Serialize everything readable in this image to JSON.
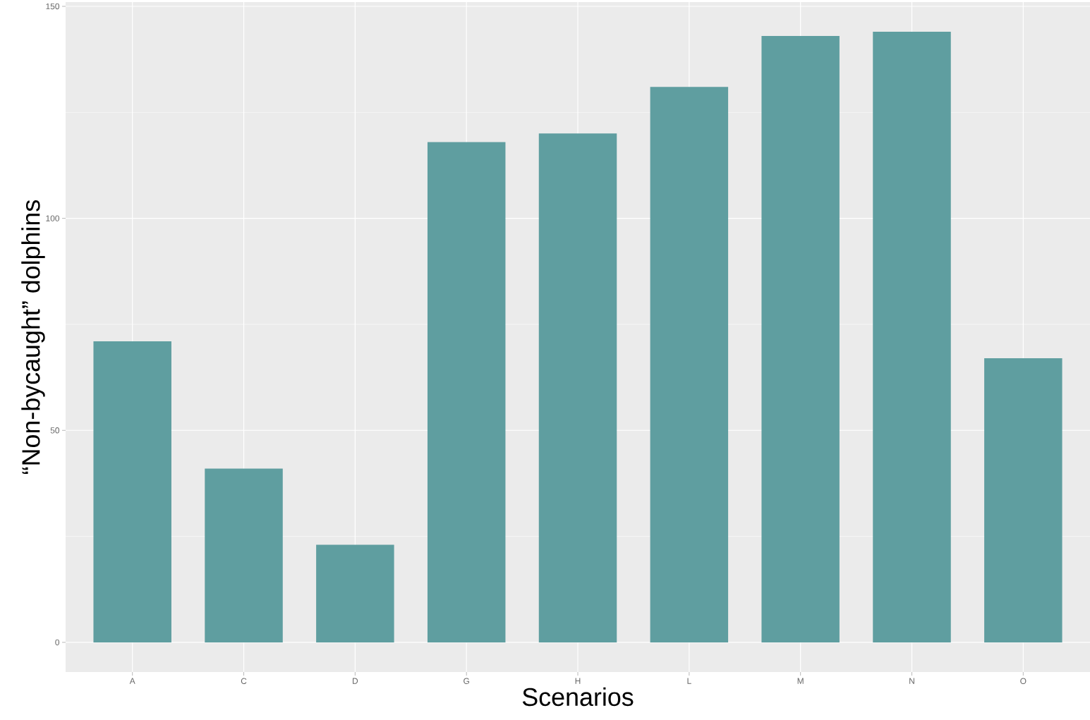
{
  "chart_data": {
    "type": "bar",
    "xlabel": "Scenarios",
    "ylabel": "“Non-bycaught” dolphins",
    "categories": [
      "A",
      "C",
      "D",
      "G",
      "H",
      "L",
      "M",
      "N",
      "O"
    ],
    "values": [
      71,
      41,
      23,
      118,
      120,
      131,
      143,
      144,
      67
    ],
    "color": "#5f9ea0",
    "ylim": [
      -7,
      151
    ],
    "yticks": [
      0,
      50,
      100,
      150
    ],
    "grid": true
  }
}
